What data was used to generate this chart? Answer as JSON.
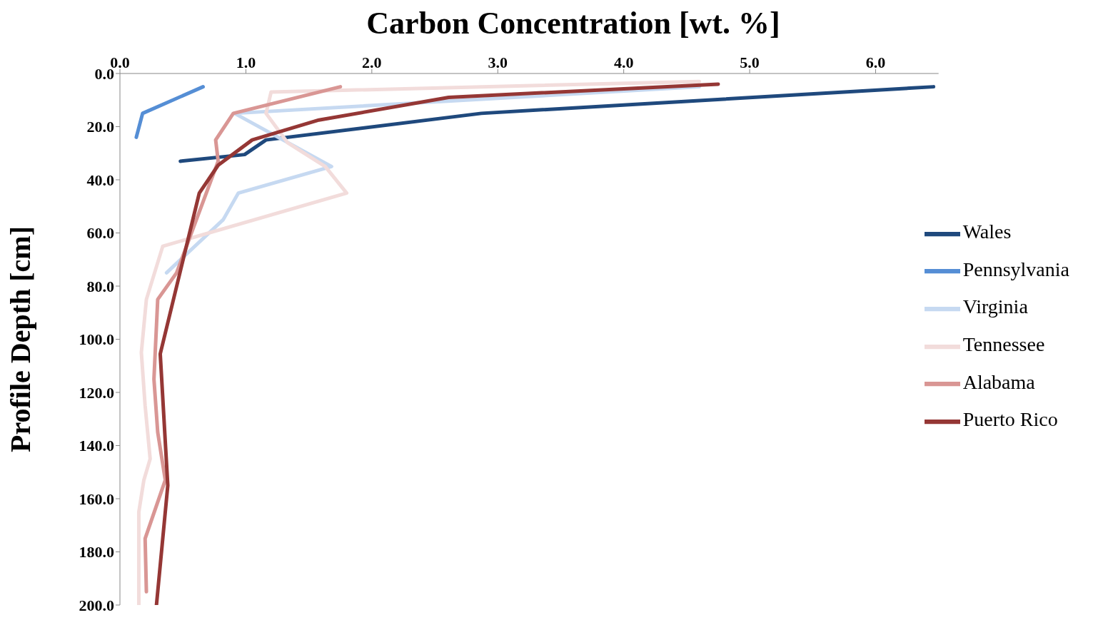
{
  "chart_data": {
    "type": "line",
    "title": "Carbon Concentration [wt. %]",
    "ylabel": "Profile Depth [cm]",
    "xlim": [
      0,
      6.5
    ],
    "xticks": [
      {
        "value": 0,
        "label": "0.0"
      },
      {
        "value": 1,
        "label": "1.0"
      },
      {
        "value": 2,
        "label": "2.0"
      },
      {
        "value": 3,
        "label": "3.0"
      },
      {
        "value": 4,
        "label": "4.0"
      },
      {
        "value": 5,
        "label": "5.0"
      },
      {
        "value": 6,
        "label": "6.0"
      }
    ],
    "ylim": [
      200,
      0
    ],
    "yticks": [
      {
        "value": 0,
        "label": "0.0"
      },
      {
        "value": 20,
        "label": "20.0"
      },
      {
        "value": 40,
        "label": "40.0"
      },
      {
        "value": 60,
        "label": "60.0"
      },
      {
        "value": 80,
        "label": "80.0"
      },
      {
        "value": 100,
        "label": "100.0"
      },
      {
        "value": 120,
        "label": "120.0"
      },
      {
        "value": 140,
        "label": "140.0"
      },
      {
        "value": 160,
        "label": "160.0"
      },
      {
        "value": 180,
        "label": "180.0"
      },
      {
        "value": 200,
        "label": "200.0"
      }
    ],
    "grid": false,
    "legend": "right",
    "marker": "none",
    "line_style": "solid",
    "series": [
      {
        "name": "Wales",
        "color": "#1f497d",
        "x": [
          6.46,
          2.87,
          1.16,
          0.99,
          0.48
        ],
        "values": [
          5,
          15,
          25,
          30.5,
          33
        ]
      },
      {
        "name": "Pennsylvania",
        "color": "#558ed5",
        "x": [
          0.66,
          0.18,
          0.13
        ],
        "values": [
          5,
          15,
          24
        ]
      },
      {
        "name": "Virginia",
        "color": "#c6d9f1",
        "x": [
          4.6,
          0.91,
          1.68,
          0.94,
          0.82,
          0.37
        ],
        "values": [
          5,
          15,
          35,
          45,
          55,
          75
        ]
      },
      {
        "name": "Tennessee",
        "color": "#f2dcdb",
        "x": [
          4.6,
          1.2,
          1.16,
          1.33,
          1.63,
          1.8,
          0.34,
          0.21,
          0.17,
          0.2,
          0.24,
          0.19,
          0.15,
          0.15
        ],
        "values": [
          3,
          7,
          15,
          26,
          35,
          45,
          65,
          85,
          105,
          125,
          145,
          153,
          165,
          200
        ]
      },
      {
        "name": "Alabama",
        "color": "#d99694",
        "x": [
          1.75,
          0.9,
          0.76,
          0.78,
          0.45,
          0.3,
          0.27,
          0.3,
          0.36,
          0.2,
          0.21
        ],
        "values": [
          5,
          15,
          25,
          33,
          75,
          85,
          115,
          135,
          153,
          175,
          195
        ]
      },
      {
        "name": "Puerto Rico",
        "color": "#953735",
        "x": [
          4.75,
          2.61,
          1.58,
          1.05,
          0.78,
          0.63,
          0.32,
          0.38,
          0.29
        ],
        "values": [
          4,
          9,
          17.5,
          25,
          34.5,
          45,
          105.5,
          155,
          200
        ]
      }
    ]
  }
}
